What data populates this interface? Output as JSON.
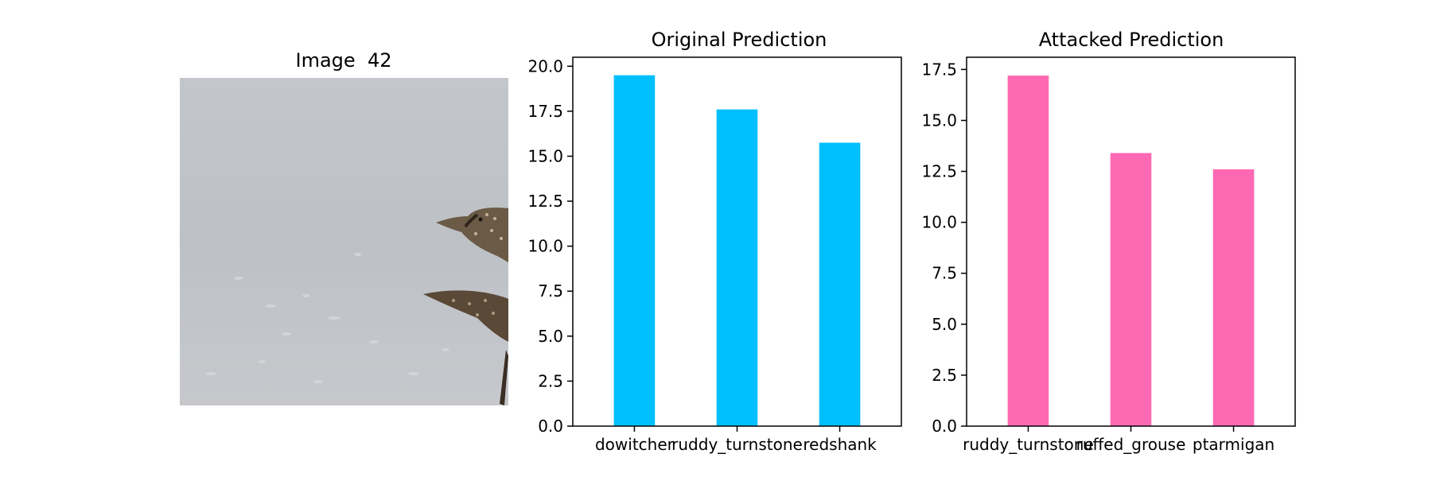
{
  "image_panel": {
    "title": "Image  42"
  },
  "chart_data": [
    {
      "type": "bar",
      "title": "Original Prediction",
      "categories": [
        "dowitcher",
        "ruddy_turnstone",
        "redshank"
      ],
      "values": [
        19.5,
        17.6,
        15.75
      ],
      "ylim": [
        0,
        20.5
      ],
      "yticks": [
        0.0,
        2.5,
        5.0,
        7.5,
        10.0,
        12.5,
        15.0,
        17.5,
        20.0
      ],
      "color": "#00bfff",
      "grid": false
    },
    {
      "type": "bar",
      "title": "Attacked Prediction",
      "categories": [
        "ruddy_turnstone",
        "ruffed_grouse",
        "ptarmigan"
      ],
      "values": [
        17.2,
        13.4,
        12.6
      ],
      "ylim": [
        0,
        18.1
      ],
      "yticks": [
        0.0,
        2.5,
        5.0,
        7.5,
        10.0,
        12.5,
        15.0,
        17.5
      ],
      "color": "#ff69b4",
      "grid": false
    }
  ]
}
